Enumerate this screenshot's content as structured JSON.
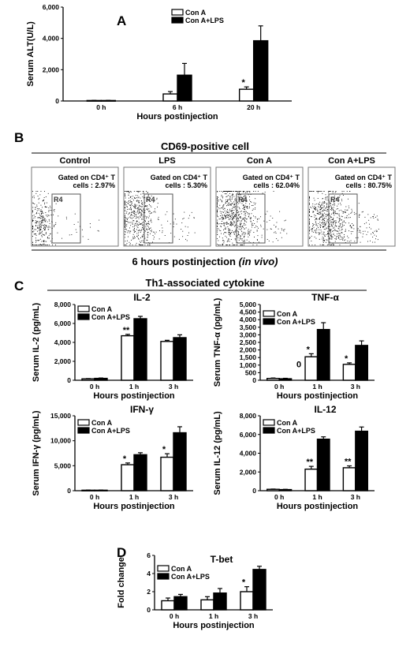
{
  "panels": {
    "a": {
      "label": "A"
    },
    "b": {
      "label": "B",
      "title": "CD69-positive cell",
      "footer": "6 hours postinjection",
      "footer_italic": "(in vivo)",
      "flow_panels": [
        {
          "title": "Control",
          "gate_label": "Gated on CD4⁺ T",
          "cells_label": "cells : 2.97%",
          "region_label": "R4"
        },
        {
          "title": "LPS",
          "gate_label": "Gated on CD4⁺ T",
          "cells_label": "cells : 5.30%",
          "region_label": "R4"
        },
        {
          "title": "Con A",
          "gate_label": "Gated on CD4⁺ T",
          "cells_label": "cells : 62.04%",
          "region_label": "R4"
        },
        {
          "title": "Con A+LPS",
          "gate_label": "Gated on CD4⁺ T",
          "cells_label": "cells : 80.75%",
          "region_label": "R4"
        }
      ]
    },
    "c": {
      "label": "C",
      "title": "Th1-associated cytokine"
    },
    "d": {
      "label": "D"
    }
  },
  "colors": {
    "con_a": "#ffffff",
    "con_a_lps": "#000000",
    "stroke": "#000000"
  },
  "chart_data": [
    {
      "id": "a",
      "type": "bar",
      "title": "",
      "ylabel": "Serum ALT(U/L)",
      "xlabel": "Hours postinjection",
      "categories": [
        "0 h",
        "6 h",
        "20 h"
      ],
      "ylim": [
        0,
        6000
      ],
      "yticks": [
        0,
        2000,
        4000,
        6000
      ],
      "ytick_labels": [
        "0",
        "2,000",
        "4,000",
        "6,000"
      ],
      "legend": "top-left",
      "series": [
        {
          "name": "Con A",
          "values": [
            30,
            450,
            750
          ],
          "errors": [
            10,
            150,
            150
          ]
        },
        {
          "name": "Con A+LPS",
          "values": [
            30,
            1650,
            3850
          ],
          "errors": [
            10,
            750,
            950
          ]
        }
      ],
      "annotations": [
        {
          "series": 0,
          "index": 2,
          "text": "*"
        }
      ]
    },
    {
      "id": "c1",
      "type": "bar",
      "title": "IL-2",
      "ylabel": "Serum IL-2 (pg/mL)",
      "xlabel": "Hours postinjection",
      "categories": [
        "0 h",
        "1 h",
        "3 h"
      ],
      "ylim": [
        0,
        8000
      ],
      "yticks": [
        0,
        2000,
        4000,
        6000,
        8000
      ],
      "ytick_labels": [
        "0",
        "2,000",
        "4,000",
        "6,000",
        "8,000"
      ],
      "legend": "top-left",
      "series": [
        {
          "name": "Con A",
          "values": [
            150,
            4700,
            4100
          ],
          "errors": [
            30,
            150,
            120
          ]
        },
        {
          "name": "Con A+LPS",
          "values": [
            200,
            6500,
            4500
          ],
          "errors": [
            40,
            250,
            300
          ]
        }
      ],
      "annotations": [
        {
          "series": 0,
          "index": 1,
          "text": "**"
        }
      ]
    },
    {
      "id": "c2",
      "type": "bar",
      "title": "TNF-α",
      "ylabel": "Serum TNF-α (pg/mL)",
      "xlabel": "Hours postinjection",
      "categories": [
        "0 h",
        "1 h",
        "3 h"
      ],
      "ylim": [
        0,
        5000
      ],
      "yticks": [
        0,
        500,
        1000,
        1500,
        2000,
        2500,
        3000,
        3500,
        4000,
        4500,
        5000
      ],
      "ytick_labels": [
        "0",
        "500",
        "1,000",
        "1,500",
        "2,000",
        "2,500",
        "3,000",
        "3,500",
        "4,000",
        "4,500",
        "5,000"
      ],
      "legend": "top-left",
      "series": [
        {
          "name": "Con A",
          "values": [
            120,
            1550,
            1050
          ],
          "errors": [
            30,
            200,
            100
          ]
        },
        {
          "name": "Con A+LPS",
          "values": [
            100,
            3350,
            2300
          ],
          "errors": [
            30,
            450,
            300
          ]
        }
      ],
      "annotations": [
        {
          "series": 0,
          "index": 1,
          "text": "*"
        },
        {
          "series": 0,
          "index": 2,
          "text": "*"
        }
      ],
      "extra_text": "0"
    },
    {
      "id": "c3",
      "type": "bar",
      "title": "IFN-γ",
      "ylabel": "Serum IFN-γ (pg/mL)",
      "xlabel": "Hours postinjection",
      "categories": [
        "0 h",
        "1 h",
        "3 h"
      ],
      "ylim": [
        0,
        15000
      ],
      "yticks": [
        0,
        5000,
        10000,
        15000
      ],
      "ytick_labels": [
        "0",
        "5,000",
        "10,000",
        "15,000"
      ],
      "legend": "top-left",
      "series": [
        {
          "name": "Con A",
          "values": [
            100,
            5200,
            6700
          ],
          "errors": [
            30,
            350,
            700
          ]
        },
        {
          "name": "Con A+LPS",
          "values": [
            100,
            7200,
            11600
          ],
          "errors": [
            30,
            400,
            1200
          ]
        }
      ],
      "annotations": [
        {
          "series": 0,
          "index": 1,
          "text": "*"
        },
        {
          "series": 0,
          "index": 2,
          "text": "*"
        }
      ]
    },
    {
      "id": "c4",
      "type": "bar",
      "title": "IL-12",
      "ylabel": "Serum IL-12 (pg/mL)",
      "xlabel": "Hours postinjection",
      "categories": [
        "0 h",
        "1 h",
        "3 h"
      ],
      "ylim": [
        0,
        8000
      ],
      "yticks": [
        0,
        2000,
        4000,
        6000,
        8000
      ],
      "ytick_labels": [
        "0",
        "2,000",
        "4,000",
        "6,000",
        "8,000"
      ],
      "legend": "top-left",
      "series": [
        {
          "name": "Con A",
          "values": [
            150,
            2300,
            2450
          ],
          "errors": [
            30,
            300,
            200
          ]
        },
        {
          "name": "Con A+LPS",
          "values": [
            120,
            5500,
            6350
          ],
          "errors": [
            30,
            250,
            450
          ]
        }
      ],
      "annotations": [
        {
          "series": 0,
          "index": 1,
          "text": "**"
        },
        {
          "series": 0,
          "index": 2,
          "text": "**"
        }
      ]
    },
    {
      "id": "d",
      "type": "bar",
      "title": "T-bet",
      "ylabel": "Fold change",
      "xlabel": "Hours postinjection",
      "categories": [
        "0 h",
        "1 h",
        "3 h"
      ],
      "ylim": [
        0,
        6
      ],
      "yticks": [
        0,
        2,
        4,
        6
      ],
      "ytick_labels": [
        "0",
        "2",
        "4",
        "6"
      ],
      "legend": "top-left",
      "series": [
        {
          "name": "Con A",
          "values": [
            1.0,
            1.1,
            2.0
          ],
          "errors": [
            0.3,
            0.35,
            0.55
          ]
        },
        {
          "name": "Con A+LPS",
          "values": [
            1.45,
            1.85,
            4.45
          ],
          "errors": [
            0.25,
            0.5,
            0.35
          ]
        }
      ],
      "annotations": [
        {
          "series": 0,
          "index": 2,
          "text": "*"
        }
      ]
    }
  ]
}
